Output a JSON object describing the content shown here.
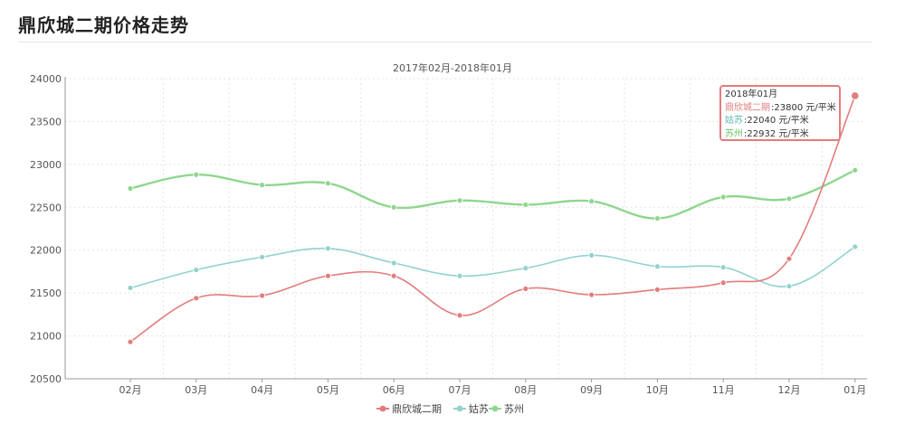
{
  "page": {
    "title": "鼎欣城二期价格走势"
  },
  "chart_data": {
    "type": "line",
    "title": "2017年02月-2018年01月",
    "categories": [
      "02月",
      "03月",
      "04月",
      "05月",
      "06月",
      "07月",
      "08月",
      "09月",
      "10月",
      "11月",
      "12月",
      "01月"
    ],
    "ylim": [
      20500,
      24000
    ],
    "yticks": [
      20500,
      21000,
      21500,
      22000,
      22500,
      23000,
      23500,
      24000
    ],
    "grid": true,
    "legend_position": "bottom-center",
    "series": [
      {
        "name": "鼎欣城二期",
        "color": "#e37c7c",
        "values": [
          20930,
          21440,
          21470,
          21700,
          21700,
          21240,
          21550,
          21480,
          21540,
          21620,
          21900,
          23800
        ]
      },
      {
        "name": "姑苏",
        "color": "#92d2cf",
        "values": [
          21560,
          21770,
          21920,
          22020,
          21850,
          21700,
          21790,
          21940,
          21810,
          21800,
          21580,
          22040
        ]
      },
      {
        "name": "苏州",
        "color": "#8fd68f",
        "values": [
          22720,
          22880,
          22760,
          22780,
          22500,
          22580,
          22530,
          22570,
          22370,
          22620,
          22600,
          22932
        ]
      }
    ],
    "tooltip": {
      "header": "2018年01月",
      "rows": [
        {
          "label": "鼎欣城二期",
          "value": ":23800",
          "unit": "元/平米",
          "color": "#e37c7c"
        },
        {
          "label": "姑苏",
          "value": ":22040",
          "unit": "元/平米",
          "color": "#5cb7b3"
        },
        {
          "label": "苏州",
          "value": ":22932",
          "unit": "元/平米",
          "color": "#6cc46c"
        }
      ]
    }
  }
}
